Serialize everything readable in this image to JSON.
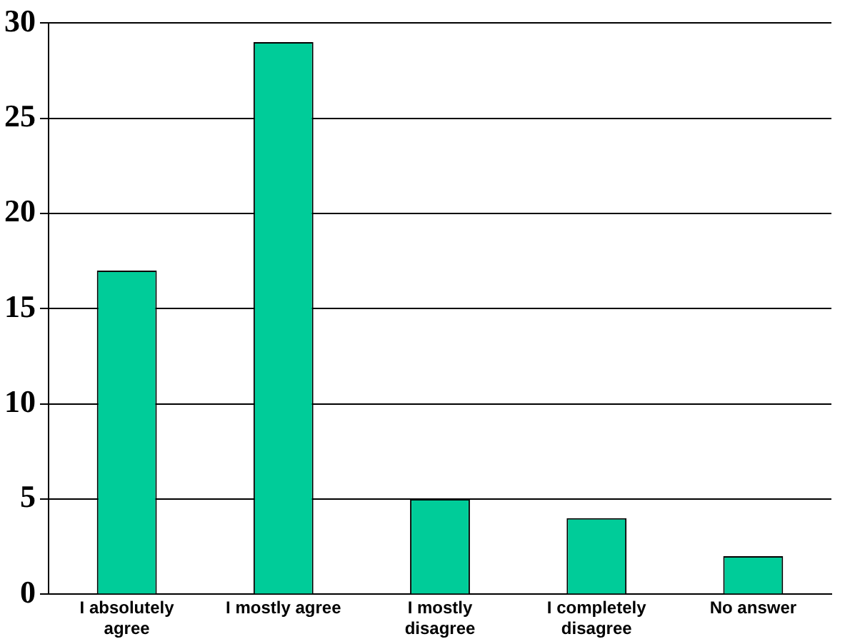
{
  "chart_data": {
    "type": "bar",
    "categories": [
      "I absolutely agree",
      "I mostly agree",
      "I mostly disagree",
      "I completely disagree",
      "No answer"
    ],
    "values": [
      17,
      29,
      5,
      4,
      2
    ],
    "color": "#00cc99",
    "ylim": [
      0,
      30
    ],
    "yticks": [
      0,
      5,
      10,
      15,
      20,
      25,
      30
    ],
    "grid": "y",
    "legend": false
  }
}
